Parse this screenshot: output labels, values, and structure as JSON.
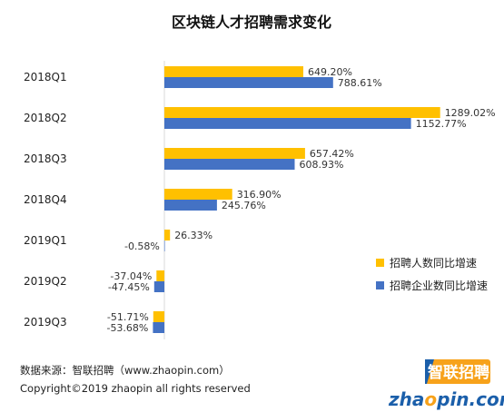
{
  "chart_data": {
    "type": "bar",
    "orientation": "horizontal",
    "title": "区块链人才招聘需求变化",
    "categories": [
      "2018Q1",
      "2018Q2",
      "2018Q3",
      "2018Q4",
      "2019Q1",
      "2019Q2",
      "2019Q3"
    ],
    "series": [
      {
        "name": "招聘人数同比增速",
        "color": "#FFC000",
        "values": [
          649.2,
          1289.02,
          657.42,
          316.9,
          26.33,
          -37.04,
          -51.71
        ],
        "labels": [
          "649.20%",
          "1289.02%",
          "657.42%",
          "316.90%",
          "26.33%",
          "-37.04%",
          "-51.71%"
        ]
      },
      {
        "name": "招聘企业数同比增速",
        "color": "#4472C4",
        "values": [
          788.61,
          1152.77,
          608.93,
          245.76,
          -0.58,
          -47.45,
          -53.68
        ],
        "labels": [
          "788.61%",
          "1152.77%",
          "608.93%",
          "245.76%",
          "-0.58%",
          "-47.45%",
          "-53.68%"
        ]
      }
    ],
    "xlim": [
      -80,
      1300
    ],
    "legend_position": "right",
    "grid": false
  },
  "footer": {
    "source": "数据来源：智联招聘（www.zhaopin.com）",
    "copyright": "Copyright©2019 zhaopin all rights reserved"
  },
  "logo": {
    "cn": "智联招聘",
    "en_left": "zha",
    "en_right": "pin.com",
    "color_orange": "#F7A21B",
    "color_blue": "#1B5FAA"
  }
}
